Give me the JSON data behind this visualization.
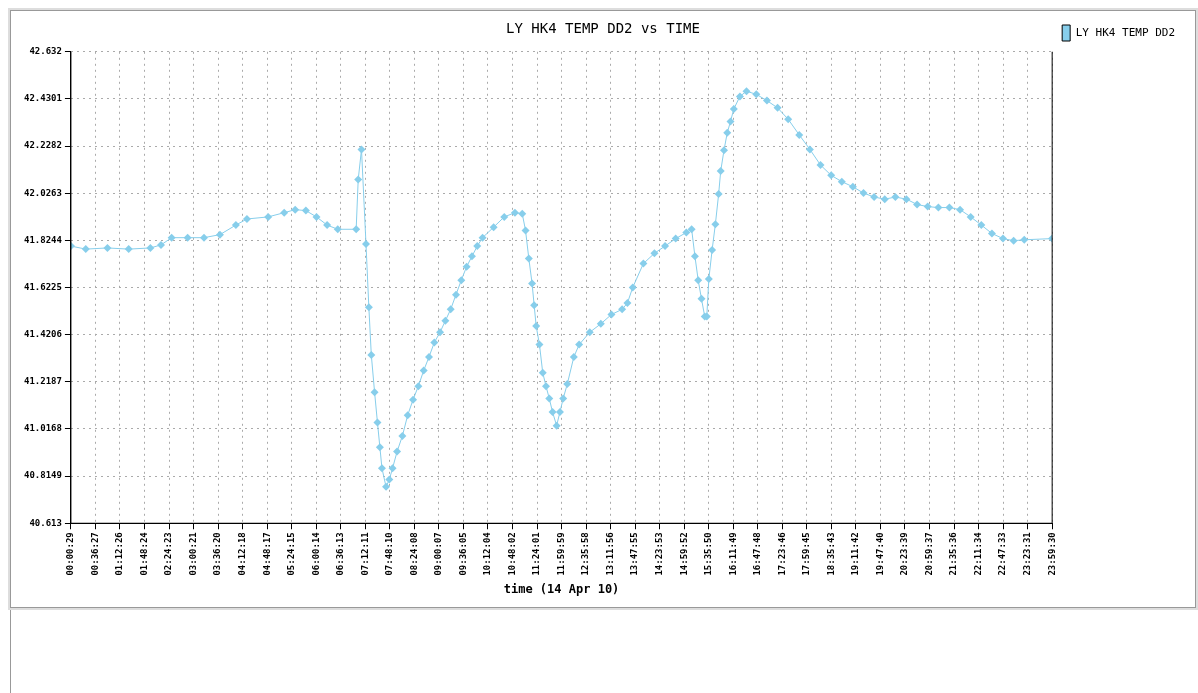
{
  "chart_data": {
    "type": "line",
    "title": "LY HK4 TEMP DD2 vs TIME",
    "xlabel": "time (14 Apr 10)",
    "xlim": [
      0.0081,
      23.9917
    ],
    "xticks": [
      {
        "value": 0.0081,
        "label": "00:00:29"
      },
      {
        "value": 0.6075,
        "label": "00:36:27"
      },
      {
        "value": 1.2072,
        "label": "01:12:26"
      },
      {
        "value": 1.8067,
        "label": "01:48:24"
      },
      {
        "value": 2.4064,
        "label": "02:24:23"
      },
      {
        "value": 3.0058,
        "label": "03:00:21"
      },
      {
        "value": 3.6056,
        "label": "03:36:20"
      },
      {
        "value": 4.205,
        "label": "04:12:18"
      },
      {
        "value": 4.8047,
        "label": "04:48:17"
      },
      {
        "value": 5.4042,
        "label": "05:24:15"
      },
      {
        "value": 6.0039,
        "label": "06:00:14"
      },
      {
        "value": 6.6036,
        "label": "06:36:13"
      },
      {
        "value": 7.2031,
        "label": "07:12:11"
      },
      {
        "value": 7.8028,
        "label": "07:48:10"
      },
      {
        "value": 8.4022,
        "label": "08:24:08"
      },
      {
        "value": 9.0019,
        "label": "09:00:07"
      },
      {
        "value": 9.6014,
        "label": "09:36:05"
      },
      {
        "value": 10.2011,
        "label": "10:12:04"
      },
      {
        "value": 10.8006,
        "label": "10:48:02"
      },
      {
        "value": 11.4003,
        "label": "11:24:01"
      },
      {
        "value": 11.9997,
        "label": "11:59:59"
      },
      {
        "value": 12.5994,
        "label": "12:35:58"
      },
      {
        "value": 13.1989,
        "label": "13:11:56"
      },
      {
        "value": 13.7986,
        "label": "13:47:55"
      },
      {
        "value": 14.3981,
        "label": "14:23:53"
      },
      {
        "value": 14.9978,
        "label": "14:59:52"
      },
      {
        "value": 15.5972,
        "label": "15:35:50"
      },
      {
        "value": 16.1969,
        "label": "16:11:49"
      },
      {
        "value": 16.7967,
        "label": "16:47:48"
      },
      {
        "value": 17.3961,
        "label": "17:23:46"
      },
      {
        "value": 17.9958,
        "label": "17:59:45"
      },
      {
        "value": 18.5953,
        "label": "18:35:43"
      },
      {
        "value": 19.195,
        "label": "19:11:42"
      },
      {
        "value": 19.7944,
        "label": "19:47:40"
      },
      {
        "value": 20.3942,
        "label": "20:23:39"
      },
      {
        "value": 20.9936,
        "label": "20:59:37"
      },
      {
        "value": 21.5933,
        "label": "21:35:36"
      },
      {
        "value": 22.1928,
        "label": "22:11:34"
      },
      {
        "value": 22.7925,
        "label": "22:47:33"
      },
      {
        "value": 23.3919,
        "label": "23:23:31"
      },
      {
        "value": 23.9917,
        "label": "23:59:30"
      }
    ],
    "ylim": [
      40.613,
      42.632
    ],
    "yticks": [
      {
        "value": 40.613,
        "label": "40.613"
      },
      {
        "value": 40.8149,
        "label": "40.8149"
      },
      {
        "value": 41.0168,
        "label": "41.0168"
      },
      {
        "value": 41.2187,
        "label": "41.2187"
      },
      {
        "value": 41.4206,
        "label": "41.4206"
      },
      {
        "value": 41.6225,
        "label": "41.6225"
      },
      {
        "value": 41.8244,
        "label": "41.8244"
      },
      {
        "value": 42.0263,
        "label": "42.0263"
      },
      {
        "value": 42.2282,
        "label": "42.2282"
      },
      {
        "value": 42.4301,
        "label": "42.4301"
      },
      {
        "value": 42.632,
        "label": "42.632"
      }
    ],
    "grid": true,
    "legend": "top right",
    "marker": "diamond",
    "line_style": "solid",
    "series": [
      {
        "name": "LY HK4 TEMP DD2",
        "color": "#87ceeb",
        "x": [
          0.01,
          0.37,
          0.9,
          1.42,
          1.95,
          2.21,
          2.47,
          2.86,
          3.26,
          3.65,
          4.04,
          4.31,
          4.83,
          5.22,
          5.49,
          5.75,
          6.01,
          6.27,
          6.53,
          6.98,
          7.03,
          7.11,
          7.22,
          7.29,
          7.35,
          7.43,
          7.5,
          7.56,
          7.61,
          7.71,
          7.79,
          7.87,
          7.98,
          8.11,
          8.24,
          8.37,
          8.5,
          8.63,
          8.76,
          8.89,
          9.03,
          9.16,
          9.29,
          9.42,
          9.55,
          9.68,
          9.81,
          9.94,
          10.07,
          10.34,
          10.6,
          10.86,
          11.04,
          11.12,
          11.2,
          11.28,
          11.33,
          11.38,
          11.46,
          11.54,
          11.62,
          11.7,
          11.78,
          11.88,
          11.96,
          12.04,
          12.14,
          12.3,
          12.43,
          12.69,
          12.96,
          13.22,
          13.48,
          13.61,
          13.74,
          14.0,
          14.27,
          14.53,
          14.79,
          15.05,
          15.18,
          15.26,
          15.34,
          15.42,
          15.5,
          15.55,
          15.6,
          15.68,
          15.76,
          15.84,
          15.89,
          15.97,
          16.05,
          16.13,
          16.21,
          16.36,
          16.52,
          16.76,
          17.02,
          17.28,
          17.54,
          17.81,
          18.07,
          18.33,
          18.59,
          18.85,
          19.12,
          19.38,
          19.64,
          19.9,
          20.16,
          20.43,
          20.69,
          20.95,
          21.21,
          21.48,
          21.74,
          22.0,
          22.26,
          22.52,
          22.79,
          23.05,
          23.31,
          23.99
        ],
        "values": [
          41.8,
          41.787,
          41.792,
          41.787,
          41.792,
          41.805,
          41.836,
          41.836,
          41.836,
          41.849,
          41.89,
          41.916,
          41.925,
          41.943,
          41.956,
          41.952,
          41.925,
          41.89,
          41.872,
          41.872,
          42.085,
          42.214,
          41.809,
          41.538,
          41.334,
          41.174,
          41.045,
          40.938,
          40.849,
          40.769,
          40.8,
          40.849,
          40.92,
          40.987,
          41.076,
          41.142,
          41.2,
          41.267,
          41.325,
          41.387,
          41.431,
          41.48,
          41.529,
          41.592,
          41.654,
          41.712,
          41.756,
          41.8,
          41.836,
          41.881,
          41.925,
          41.943,
          41.938,
          41.867,
          41.747,
          41.64,
          41.547,
          41.458,
          41.378,
          41.258,
          41.2,
          41.147,
          41.089,
          41.031,
          41.089,
          41.147,
          41.209,
          41.325,
          41.378,
          41.431,
          41.467,
          41.507,
          41.529,
          41.556,
          41.623,
          41.725,
          41.769,
          41.8,
          41.832,
          41.858,
          41.872,
          41.756,
          41.654,
          41.574,
          41.498,
          41.498,
          41.659,
          41.783,
          41.894,
          42.023,
          42.121,
          42.21,
          42.285,
          42.334,
          42.387,
          42.441,
          42.463,
          42.45,
          42.423,
          42.392,
          42.343,
          42.276,
          42.214,
          42.147,
          42.103,
          42.076,
          42.054,
          42.027,
          42.01,
          42.001,
          42.01,
          42.001,
          41.978,
          41.969,
          41.965,
          41.965,
          41.956,
          41.925,
          41.89,
          41.854,
          41.832,
          41.823,
          41.827,
          41.832
        ]
      }
    ]
  }
}
